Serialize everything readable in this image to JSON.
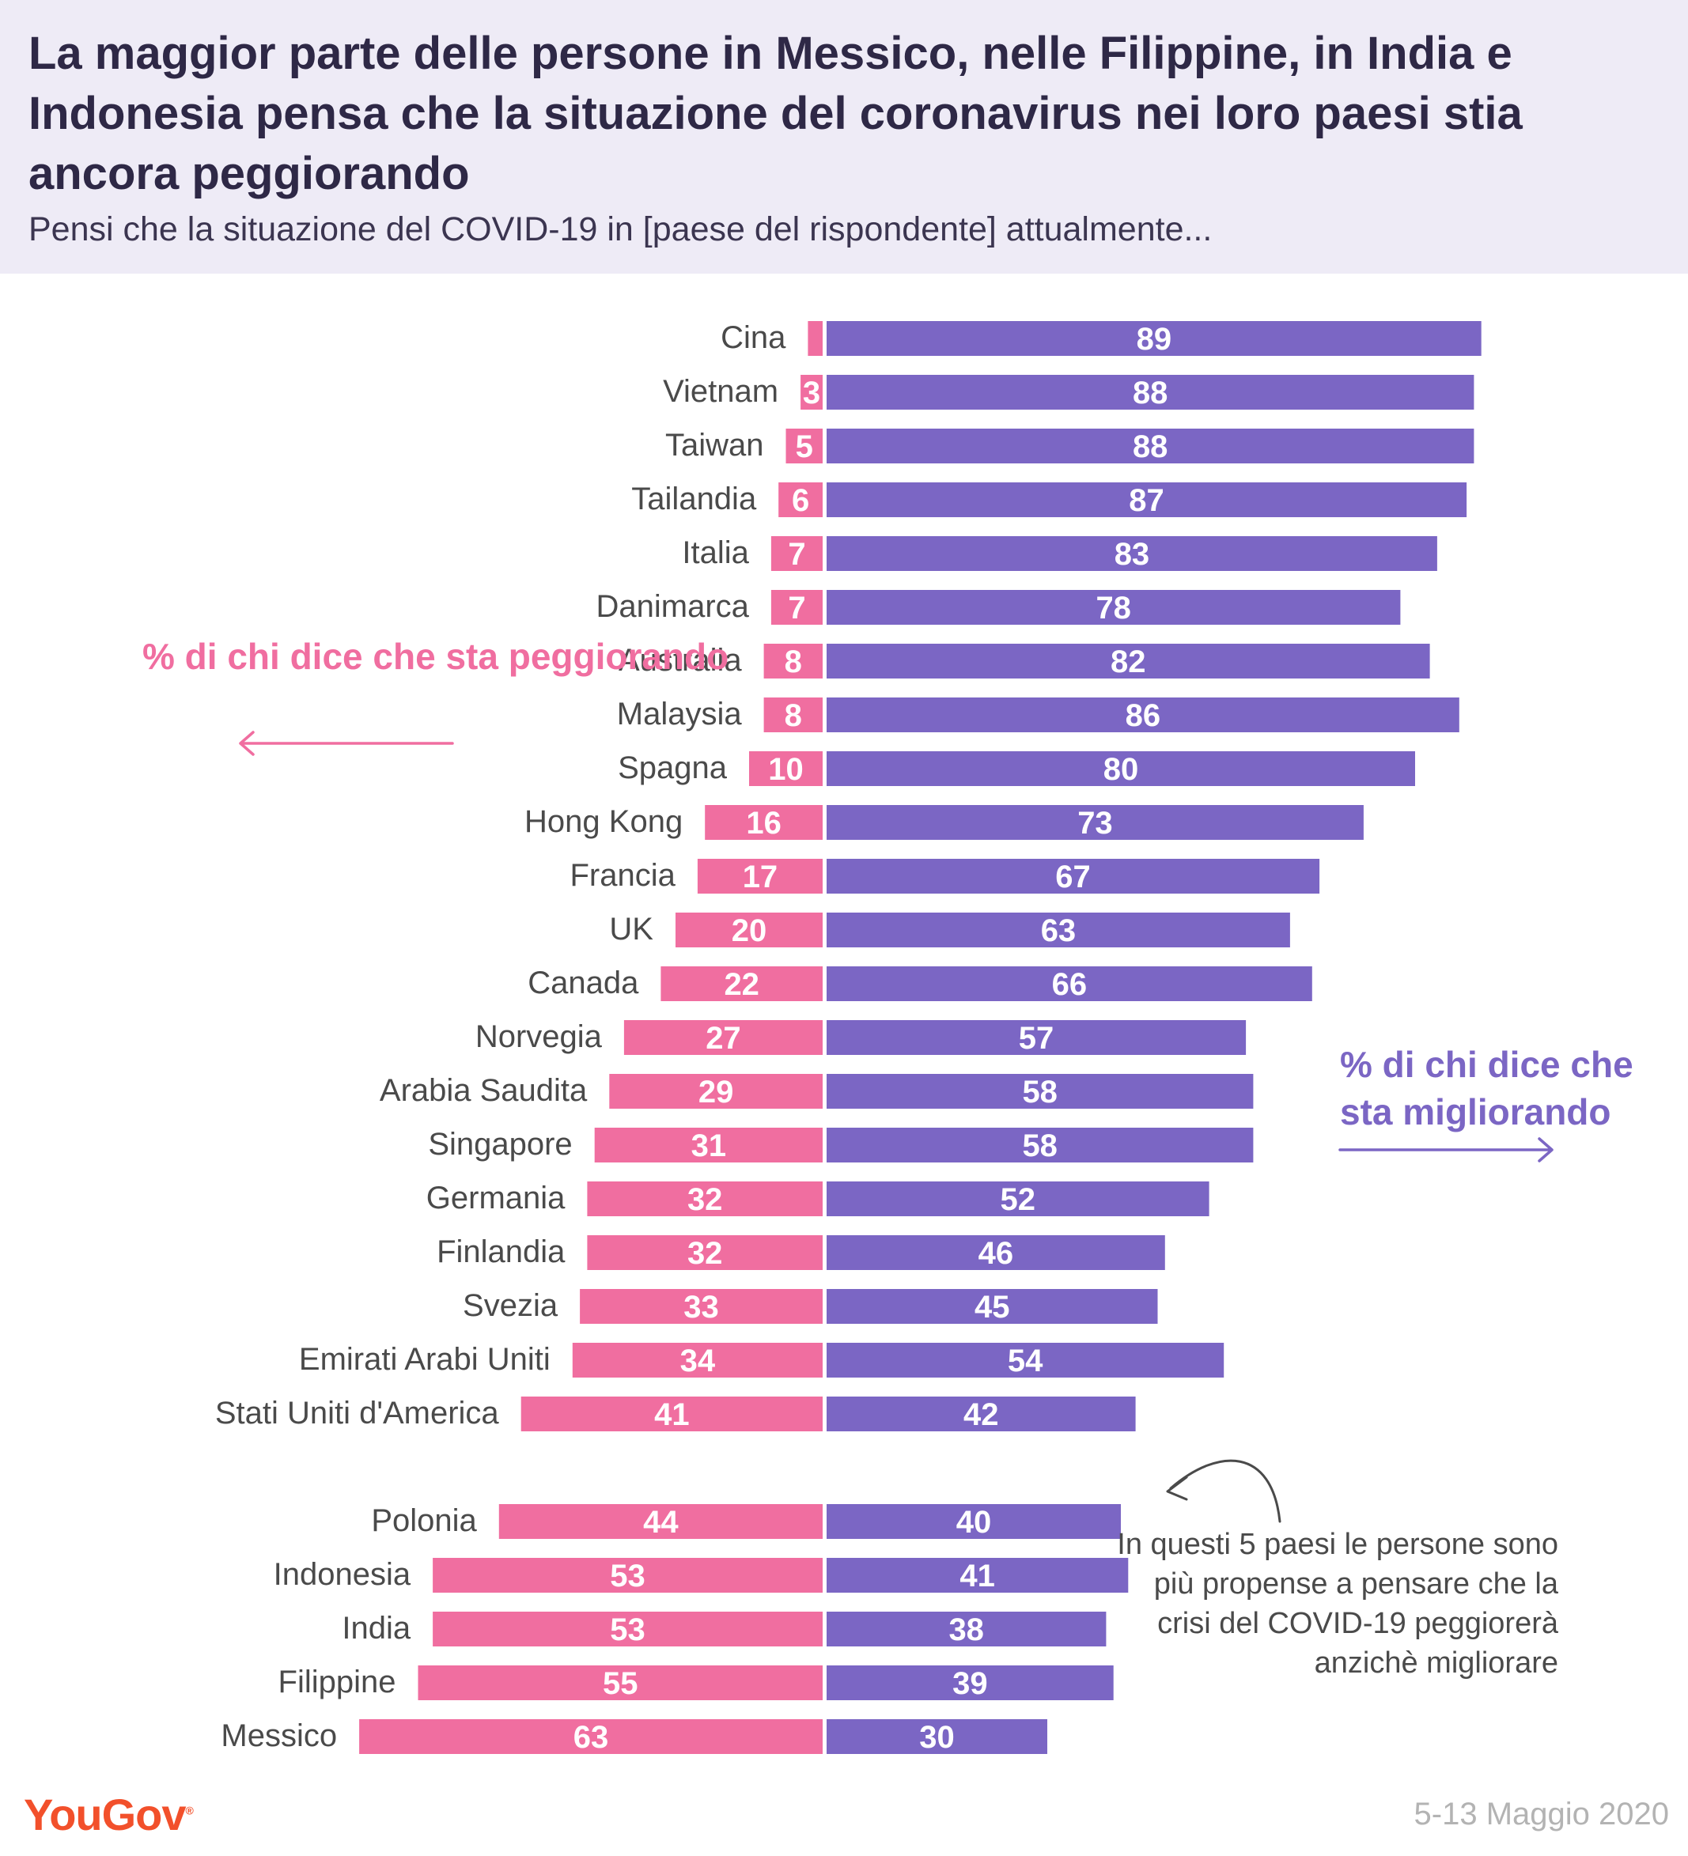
{
  "header": {
    "title": "La maggior parte delle persone in Messico, nelle Filippine, in India e Indonesia pensa che la situazione del coronavirus nei loro paesi stia ancora peggiorando",
    "subtitle": "Pensi che la situazione del COVID-19 in [paese del rispondente] attualmente..."
  },
  "legend": {
    "worse": "% di chi dice che sta peggiorando",
    "better": "% di chi dice che sta migliorando"
  },
  "annotation": "In questi 5 paesi le persone sono più propense a pensare che la crisi del COVID-19 peggiorerà anzichè migliorare",
  "footer": {
    "brand": "YouGov",
    "date": "5-13 Maggio 2020"
  },
  "colors": {
    "worse": "#F06EA0",
    "better": "#7B66C4",
    "header_bg": "#EEEBF6",
    "brand": "#F2502B"
  },
  "chart_data": {
    "type": "bar",
    "orientation": "horizontal-diverging",
    "categories": [
      "Cina",
      "Vietnam",
      "Taiwan",
      "Tailandia",
      "Italia",
      "Danimarca",
      "Australia",
      "Malaysia",
      "Spagna",
      "Hong Kong",
      "Francia",
      "UK",
      "Canada",
      "Norvegia",
      "Arabia Saudita",
      "Singapore",
      "Germania",
      "Finlandia",
      "Svezia",
      "Emirati Arabi Uniti",
      "Stati Uniti d'America",
      "Polonia",
      "Indonesia",
      "India",
      "Filippine",
      "Messico"
    ],
    "series": [
      {
        "name": "% di chi dice che sta peggiorando",
        "values": [
          2,
          3,
          5,
          6,
          7,
          7,
          8,
          8,
          10,
          16,
          17,
          20,
          22,
          27,
          29,
          31,
          32,
          32,
          33,
          34,
          41,
          44,
          53,
          53,
          55,
          63
        ],
        "printed_labels": [
          "",
          "3",
          "5",
          "6",
          "7",
          "7",
          "8",
          "8",
          "10",
          "16",
          "17",
          "20",
          "22",
          "27",
          "29",
          "31",
          "32",
          "32",
          "33",
          "34",
          "41",
          "44",
          "53",
          "53",
          "55",
          "63"
        ]
      },
      {
        "name": "% di chi dice che sta migliorando",
        "values": [
          89,
          88,
          88,
          87,
          83,
          78,
          82,
          86,
          80,
          73,
          67,
          63,
          66,
          57,
          58,
          58,
          52,
          46,
          45,
          54,
          42,
          40,
          41,
          38,
          39,
          30
        ],
        "printed_labels": [
          "89",
          "88",
          "88",
          "87",
          "83",
          "78",
          "82",
          "86",
          "80",
          "73",
          "67",
          "63",
          "66",
          "57",
          "58",
          "58",
          "52",
          "46",
          "45",
          "54",
          "42",
          "40",
          "41",
          "38",
          "39",
          "30"
        ]
      }
    ],
    "groups": [
      {
        "label": "",
        "count": 21
      },
      {
        "label": "",
        "count": 5
      }
    ]
  }
}
